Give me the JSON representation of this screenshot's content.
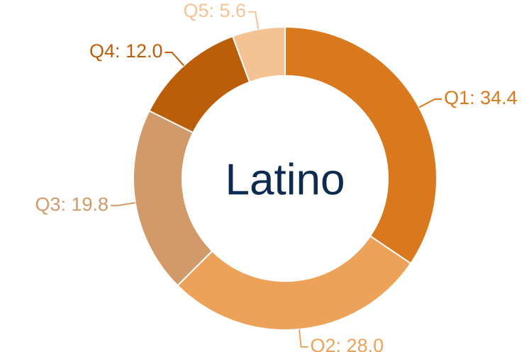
{
  "chart_data": {
    "type": "donut",
    "title": "Latino",
    "categories": [
      "Q1",
      "Q2",
      "Q3",
      "Q4",
      "Q5"
    ],
    "values": [
      34.4,
      28.0,
      19.8,
      12.0,
      5.6
    ],
    "value_labels": [
      "Q1: 34.4",
      "Q2: 28.0",
      "Q3: 19.8",
      "Q4: 12.0",
      "Q5: 5.6"
    ],
    "colors": [
      "#d9781c",
      "#eca258",
      "#d29a68",
      "#bb5e0a",
      "#f5c393"
    ]
  }
}
